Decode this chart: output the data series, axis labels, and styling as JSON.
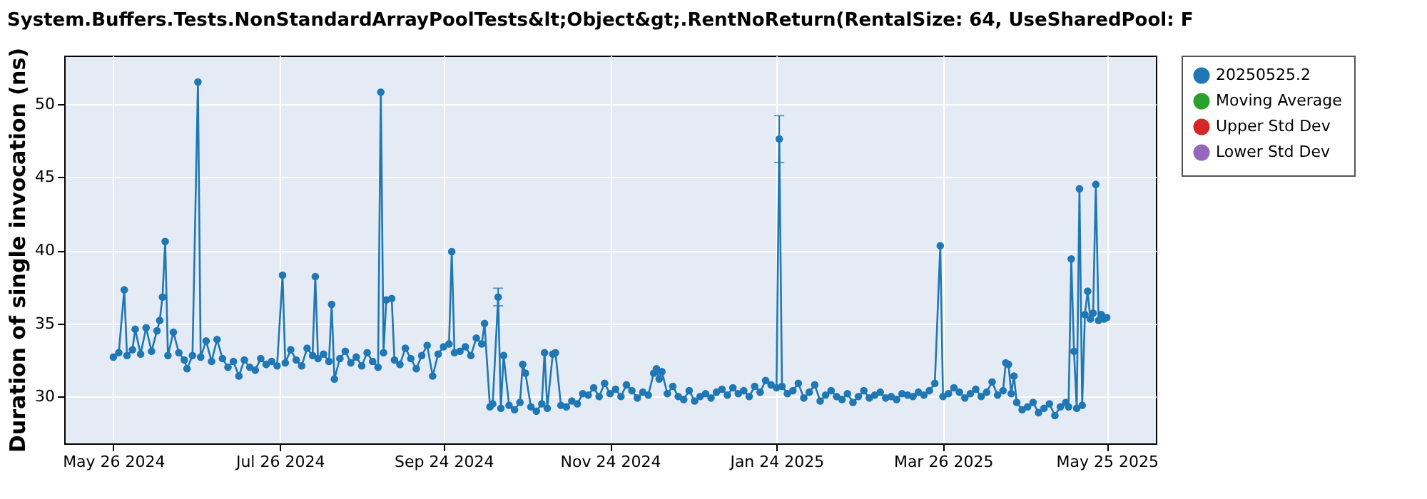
{
  "chart_data": {
    "type": "line",
    "title": "System.Buffers.Tests.NonStandardArrayPoolTests&lt;Object&gt;.RentNoReturn(RentalSize: 64, UseSharedPool: F",
    "ylabel": "Duration of single invocation (ns)",
    "xlim": [
      "2024-05-08",
      "2025-06-12"
    ],
    "xticks": [
      {
        "value": "2024-05-26",
        "label": "May 26 2024"
      },
      {
        "value": "2024-07-26",
        "label": "Jul 26 2024"
      },
      {
        "value": "2024-09-24",
        "label": "Sep 24 2024"
      },
      {
        "value": "2024-11-24",
        "label": "Nov 24 2024"
      },
      {
        "value": "2025-01-24",
        "label": "Jan 24 2025"
      },
      {
        "value": "2025-03-26",
        "label": "Mar 26 2025"
      },
      {
        "value": "2025-05-25",
        "label": "May 25 2025"
      }
    ],
    "ylim": [
      26.8,
      53.3
    ],
    "yticks": [
      30,
      35,
      40,
      45,
      50
    ],
    "grid": true,
    "legend": "right",
    "marker": "circle",
    "line_style": "solid",
    "x": [
      "2024-05-26",
      "2024-05-28",
      "2024-05-30",
      "2024-05-31",
      "2024-06-02",
      "2024-06-03",
      "2024-06-05",
      "2024-06-07",
      "2024-06-09",
      "2024-06-11",
      "2024-06-12",
      "2024-06-13",
      "2024-06-14",
      "2024-06-15",
      "2024-06-17",
      "2024-06-19",
      "2024-06-21",
      "2024-06-22",
      "2024-06-24",
      "2024-06-26",
      "2024-06-27",
      "2024-06-29",
      "2024-07-01",
      "2024-07-03",
      "2024-07-05",
      "2024-07-07",
      "2024-07-09",
      "2024-07-11",
      "2024-07-13",
      "2024-07-15",
      "2024-07-17",
      "2024-07-19",
      "2024-07-21",
      "2024-07-23",
      "2024-07-25",
      "2024-07-27",
      "2024-07-28",
      "2024-07-30",
      "2024-08-01",
      "2024-08-03",
      "2024-08-05",
      "2024-08-07",
      "2024-08-08",
      "2024-08-09",
      "2024-08-11",
      "2024-08-13",
      "2024-08-14",
      "2024-08-15",
      "2024-08-17",
      "2024-08-19",
      "2024-08-21",
      "2024-08-23",
      "2024-08-25",
      "2024-08-27",
      "2024-08-29",
      "2024-08-31",
      "2024-09-01",
      "2024-09-02",
      "2024-09-03",
      "2024-09-05",
      "2024-09-06",
      "2024-09-08",
      "2024-09-10",
      "2024-09-12",
      "2024-09-14",
      "2024-09-16",
      "2024-09-18",
      "2024-09-20",
      "2024-09-22",
      "2024-09-24",
      "2024-09-26",
      "2024-09-27",
      "2024-09-28",
      "2024-09-30",
      "2024-10-02",
      "2024-10-04",
      "2024-10-06",
      "2024-10-08",
      "2024-10-09",
      "2024-10-11",
      "2024-10-12",
      "2024-10-14",
      "2024-10-15",
      "2024-10-16",
      "2024-10-18",
      "2024-10-20",
      "2024-10-22",
      "2024-10-23",
      "2024-10-24",
      "2024-10-26",
      "2024-10-28",
      "2024-10-30",
      "2024-10-31",
      "2024-11-01",
      "2024-11-03",
      "2024-11-04",
      "2024-11-06",
      "2024-11-08",
      "2024-11-10",
      "2024-11-12",
      "2024-11-14",
      "2024-11-16",
      "2024-11-18",
      "2024-11-20",
      "2024-11-22",
      "2024-11-24",
      "2024-11-26",
      "2024-11-28",
      "2024-11-30",
      "2024-12-02",
      "2024-12-04",
      "2024-12-06",
      "2024-12-08",
      "2024-12-10",
      "2024-12-11",
      "2024-12-12",
      "2024-12-13",
      "2024-12-15",
      "2024-12-17",
      "2024-12-19",
      "2024-12-21",
      "2024-12-23",
      "2024-12-25",
      "2024-12-27",
      "2024-12-29",
      "2024-12-31",
      "2025-01-02",
      "2025-01-04",
      "2025-01-06",
      "2025-01-08",
      "2025-01-10",
      "2025-01-12",
      "2025-01-14",
      "2025-01-16",
      "2025-01-18",
      "2025-01-20",
      "2025-01-22",
      "2025-01-24",
      "2025-01-25",
      "2025-01-26",
      "2025-01-28",
      "2025-01-30",
      "2025-02-01",
      "2025-02-03",
      "2025-02-05",
      "2025-02-07",
      "2025-02-09",
      "2025-02-11",
      "2025-02-13",
      "2025-02-15",
      "2025-02-17",
      "2025-02-19",
      "2025-02-21",
      "2025-02-23",
      "2025-02-25",
      "2025-02-27",
      "2025-03-01",
      "2025-03-03",
      "2025-03-05",
      "2025-03-07",
      "2025-03-09",
      "2025-03-11",
      "2025-03-13",
      "2025-03-15",
      "2025-03-17",
      "2025-03-19",
      "2025-03-21",
      "2025-03-23",
      "2025-03-25",
      "2025-03-26",
      "2025-03-28",
      "2025-03-30",
      "2025-04-01",
      "2025-04-03",
      "2025-04-05",
      "2025-04-07",
      "2025-04-09",
      "2025-04-11",
      "2025-04-13",
      "2025-04-15",
      "2025-04-17",
      "2025-04-18",
      "2025-04-19",
      "2025-04-20",
      "2025-04-21",
      "2025-04-22",
      "2025-04-24",
      "2025-04-26",
      "2025-04-28",
      "2025-04-30",
      "2025-05-02",
      "2025-05-04",
      "2025-05-06",
      "2025-05-08",
      "2025-05-10",
      "2025-05-11",
      "2025-05-12",
      "2025-05-13",
      "2025-05-14",
      "2025-05-15",
      "2025-05-16",
      "2025-05-17",
      "2025-05-18",
      "2025-05-19",
      "2025-05-20",
      "2025-05-21",
      "2025-05-22",
      "2025-05-23",
      "2025-05-24",
      "2025-05-25"
    ],
    "series": [
      {
        "name": "20250525.2",
        "color": "#1f77b4",
        "values": [
          32.7,
          33.0,
          37.3,
          32.8,
          33.2,
          34.6,
          32.9,
          34.7,
          33.1,
          34.5,
          35.2,
          36.8,
          40.6,
          32.8,
          34.4,
          33.0,
          32.5,
          31.9,
          32.8,
          51.5,
          32.7,
          33.8,
          32.4,
          33.9,
          32.6,
          32.0,
          32.4,
          31.4,
          32.5,
          32.0,
          31.8,
          32.6,
          32.2,
          32.4,
          32.1,
          38.3,
          32.3,
          33.2,
          32.5,
          32.1,
          33.3,
          32.8,
          38.2,
          32.6,
          32.9,
          32.4,
          36.3,
          31.2,
          32.6,
          33.1,
          32.3,
          32.7,
          32.1,
          33.0,
          32.4,
          32.0,
          50.8,
          33.0,
          36.6,
          36.7,
          32.5,
          32.2,
          33.3,
          32.6,
          31.9,
          32.8,
          33.5,
          31.4,
          32.9,
          33.4,
          33.6,
          39.9,
          33.0,
          33.1,
          33.4,
          32.8,
          34.0,
          33.6,
          35.0,
          29.3,
          29.5,
          36.8,
          29.2,
          32.8,
          29.4,
          29.1,
          29.6,
          32.2,
          31.6,
          29.3,
          29.0,
          29.5,
          33.0,
          29.2,
          32.9,
          33.0,
          29.4,
          29.3,
          29.7,
          29.5,
          30.2,
          30.1,
          30.6,
          30.0,
          30.9,
          30.2,
          30.5,
          30.0,
          30.8,
          30.4,
          29.9,
          30.3,
          30.1,
          31.6,
          31.9,
          31.2,
          31.7,
          30.2,
          30.7,
          30.0,
          29.8,
          30.4,
          29.7,
          30.0,
          30.2,
          29.9,
          30.3,
          30.5,
          30.1,
          30.6,
          30.2,
          30.4,
          30.0,
          30.7,
          30.3,
          31.1,
          30.8,
          30.6,
          47.6,
          30.7,
          30.2,
          30.4,
          30.9,
          29.9,
          30.3,
          30.8,
          29.7,
          30.1,
          30.4,
          30.0,
          29.8,
          30.2,
          29.6,
          30.0,
          30.4,
          29.9,
          30.1,
          30.3,
          29.9,
          30.0,
          29.8,
          30.2,
          30.1,
          30.0,
          30.3,
          30.1,
          30.4,
          30.9,
          40.3,
          30.0,
          30.2,
          30.6,
          30.3,
          29.9,
          30.2,
          30.5,
          30.0,
          30.3,
          31.0,
          30.1,
          30.4,
          32.3,
          32.2,
          30.2,
          31.4,
          29.6,
          29.1,
          29.3,
          29.6,
          28.9,
          29.2,
          29.5,
          28.7,
          29.3,
          29.6,
          29.3,
          39.4,
          33.1,
          29.2,
          44.2,
          29.4,
          35.6,
          37.2,
          35.3,
          35.7,
          44.5,
          35.2,
          35.6,
          35.3,
          35.4
        ],
        "errors": [
          null,
          null,
          null,
          null,
          null,
          null,
          null,
          null,
          null,
          null,
          null,
          null,
          null,
          null,
          null,
          null,
          null,
          null,
          null,
          null,
          null,
          null,
          null,
          null,
          null,
          null,
          null,
          null,
          null,
          null,
          null,
          null,
          null,
          null,
          null,
          null,
          null,
          null,
          null,
          null,
          null,
          null,
          null,
          null,
          null,
          null,
          null,
          null,
          null,
          null,
          null,
          null,
          null,
          null,
          null,
          null,
          null,
          null,
          null,
          null,
          null,
          null,
          null,
          null,
          null,
          null,
          null,
          null,
          null,
          null,
          null,
          null,
          null,
          null,
          null,
          null,
          null,
          null,
          null,
          null,
          null,
          [
            36.2,
            37.4
          ],
          null,
          null,
          null,
          null,
          null,
          null,
          null,
          null,
          null,
          null,
          null,
          null,
          null,
          null,
          null,
          null,
          null,
          null,
          null,
          null,
          null,
          null,
          null,
          null,
          null,
          null,
          null,
          null,
          null,
          null,
          null,
          null,
          null,
          null,
          null,
          null,
          null,
          null,
          null,
          null,
          null,
          null,
          null,
          null,
          null,
          null,
          null,
          null,
          null,
          null,
          null,
          null,
          null,
          null,
          null,
          null,
          [
            46.0,
            49.2
          ],
          null,
          null,
          null,
          null,
          null,
          null,
          null,
          null,
          null,
          null,
          null,
          null,
          null,
          null,
          null,
          null,
          null,
          null,
          null,
          null,
          null,
          null,
          null,
          null,
          null,
          null,
          null,
          null,
          null,
          null,
          null,
          null,
          null,
          null,
          null,
          null,
          null,
          null,
          null,
          null,
          null,
          null,
          null,
          null,
          null,
          null,
          null,
          null,
          null,
          null,
          null,
          null,
          null,
          null,
          null,
          null,
          null,
          null,
          null,
          null,
          null,
          null,
          null,
          null,
          null,
          null,
          null,
          null,
          null,
          null,
          null
        ]
      },
      {
        "name": "Moving Average",
        "color": "#2ca02c",
        "values": [
          null,
          null,
          null,
          null,
          null,
          null,
          null,
          null,
          null,
          null,
          null,
          null,
          null,
          null,
          null,
          null,
          null,
          null,
          null,
          null,
          null,
          null,
          null,
          null,
          null,
          null,
          null,
          null,
          null,
          null,
          null,
          null,
          null,
          null,
          null,
          null,
          null,
          null,
          null,
          null,
          null,
          null,
          null,
          null,
          null,
          null,
          null,
          null,
          null,
          null,
          null,
          null,
          null,
          null,
          null,
          null,
          null,
          null,
          null,
          null,
          null,
          null,
          null,
          null,
          null,
          null,
          null,
          null,
          null,
          null,
          null,
          null,
          null,
          null,
          null,
          null,
          null,
          null,
          null,
          null,
          null,
          null,
          null,
          null,
          null,
          null,
          null,
          null,
          null,
          null,
          null,
          null,
          null,
          null,
          null,
          null,
          null,
          null,
          null,
          null,
          null,
          null,
          null,
          null,
          null,
          null,
          null,
          null,
          null,
          null,
          null,
          null,
          null,
          null,
          null,
          null,
          null,
          null,
          null,
          null,
          null,
          null,
          null,
          null,
          null,
          null,
          null,
          null,
          null,
          null,
          null,
          null,
          null,
          null,
          null,
          null,
          null,
          null,
          null,
          null,
          null,
          null,
          null,
          null,
          null,
          null,
          null,
          null,
          null,
          null,
          null,
          null,
          null,
          null,
          null,
          null,
          null,
          null,
          null,
          null,
          null,
          null,
          null,
          null,
          null,
          null,
          null,
          null,
          null,
          null,
          null,
          null,
          null,
          null,
          null,
          null,
          null,
          null,
          null,
          null,
          null,
          null,
          null,
          null,
          null,
          null,
          null,
          null,
          null,
          null,
          null,
          null,
          null,
          null,
          null,
          null,
          null,
          null,
          null,
          null,
          null,
          null,
          null,
          null,
          null,
          null,
          null,
          null,
          null,
          null
        ]
      },
      {
        "name": "Upper Std Dev",
        "color": "#d62728",
        "values": [
          null,
          null,
          null,
          null,
          null,
          null,
          null,
          null,
          null,
          null,
          null,
          null,
          null,
          null,
          null,
          null,
          null,
          null,
          null,
          null,
          null,
          null,
          null,
          null,
          null,
          null,
          null,
          null,
          null,
          null,
          null,
          null,
          null,
          null,
          null,
          null,
          null,
          null,
          null,
          null,
          null,
          null,
          null,
          null,
          null,
          null,
          null,
          null,
          null,
          null,
          null,
          null,
          null,
          null,
          null,
          null,
          null,
          null,
          null,
          null,
          null,
          null,
          null,
          null,
          null,
          null,
          null,
          null,
          null,
          null,
          null,
          null,
          null,
          null,
          null,
          null,
          null,
          null,
          null,
          null,
          null,
          null,
          null,
          null,
          null,
          null,
          null,
          null,
          null,
          null,
          null,
          null,
          null,
          null,
          null,
          null,
          null,
          null,
          null,
          null,
          null,
          null,
          null,
          null,
          null,
          null,
          null,
          null,
          null,
          null,
          null,
          null,
          null,
          null,
          null,
          null,
          null,
          null,
          null,
          null,
          null,
          null,
          null,
          null,
          null,
          null,
          null,
          null,
          null,
          null,
          null,
          null,
          null,
          null,
          null,
          null,
          null,
          null,
          null,
          null,
          null,
          null,
          null,
          null,
          null,
          null,
          null,
          null,
          null,
          null,
          null,
          null,
          null,
          null,
          null,
          null,
          null,
          null,
          null,
          null,
          null,
          null,
          null,
          null,
          null,
          null,
          null,
          null,
          null,
          null,
          null,
          null,
          null,
          null,
          null,
          null,
          null,
          null,
          null,
          null,
          null,
          null,
          null,
          null,
          null,
          null,
          null,
          null,
          null,
          null,
          null,
          null,
          null,
          null,
          null,
          null,
          null,
          null,
          null,
          null,
          null,
          null,
          null,
          null,
          null,
          null,
          null,
          null,
          null,
          null
        ]
      },
      {
        "name": "Lower Std Dev",
        "color": "#9467bd",
        "values": [
          null,
          null,
          null,
          null,
          null,
          null,
          null,
          null,
          null,
          null,
          null,
          null,
          null,
          null,
          null,
          null,
          null,
          null,
          null,
          null,
          null,
          null,
          null,
          null,
          null,
          null,
          null,
          null,
          null,
          null,
          null,
          null,
          null,
          null,
          null,
          null,
          null,
          null,
          null,
          null,
          null,
          null,
          null,
          null,
          null,
          null,
          null,
          null,
          null,
          null,
          null,
          null,
          null,
          null,
          null,
          null,
          null,
          null,
          null,
          null,
          null,
          null,
          null,
          null,
          null,
          null,
          null,
          null,
          null,
          null,
          null,
          null,
          null,
          null,
          null,
          null,
          null,
          null,
          null,
          null,
          null,
          null,
          null,
          null,
          null,
          null,
          null,
          null,
          null,
          null,
          null,
          null,
          null,
          null,
          null,
          null,
          null,
          null,
          null,
          null,
          null,
          null,
          null,
          null,
          null,
          null,
          null,
          null,
          null,
          null,
          null,
          null,
          null,
          null,
          null,
          null,
          null,
          null,
          null,
          null,
          null,
          null,
          null,
          null,
          null,
          null,
          null,
          null,
          null,
          null,
          null,
          null,
          null,
          null,
          null,
          null,
          null,
          null,
          null,
          null,
          null,
          null,
          null,
          null,
          null,
          null,
          null,
          null,
          null,
          null,
          null,
          null,
          null,
          null,
          null,
          null,
          null,
          null,
          null,
          null,
          null,
          null,
          null,
          null,
          null,
          null,
          null,
          null,
          null,
          null,
          null,
          null,
          null,
          null,
          null,
          null,
          null,
          null,
          null,
          null,
          null,
          null,
          null,
          null,
          null,
          null,
          null,
          null,
          null,
          null,
          null,
          null,
          null,
          null,
          null,
          null,
          null,
          null,
          null,
          null,
          null,
          null,
          null,
          null,
          null,
          null,
          null,
          null,
          null,
          null
        ]
      }
    ]
  }
}
